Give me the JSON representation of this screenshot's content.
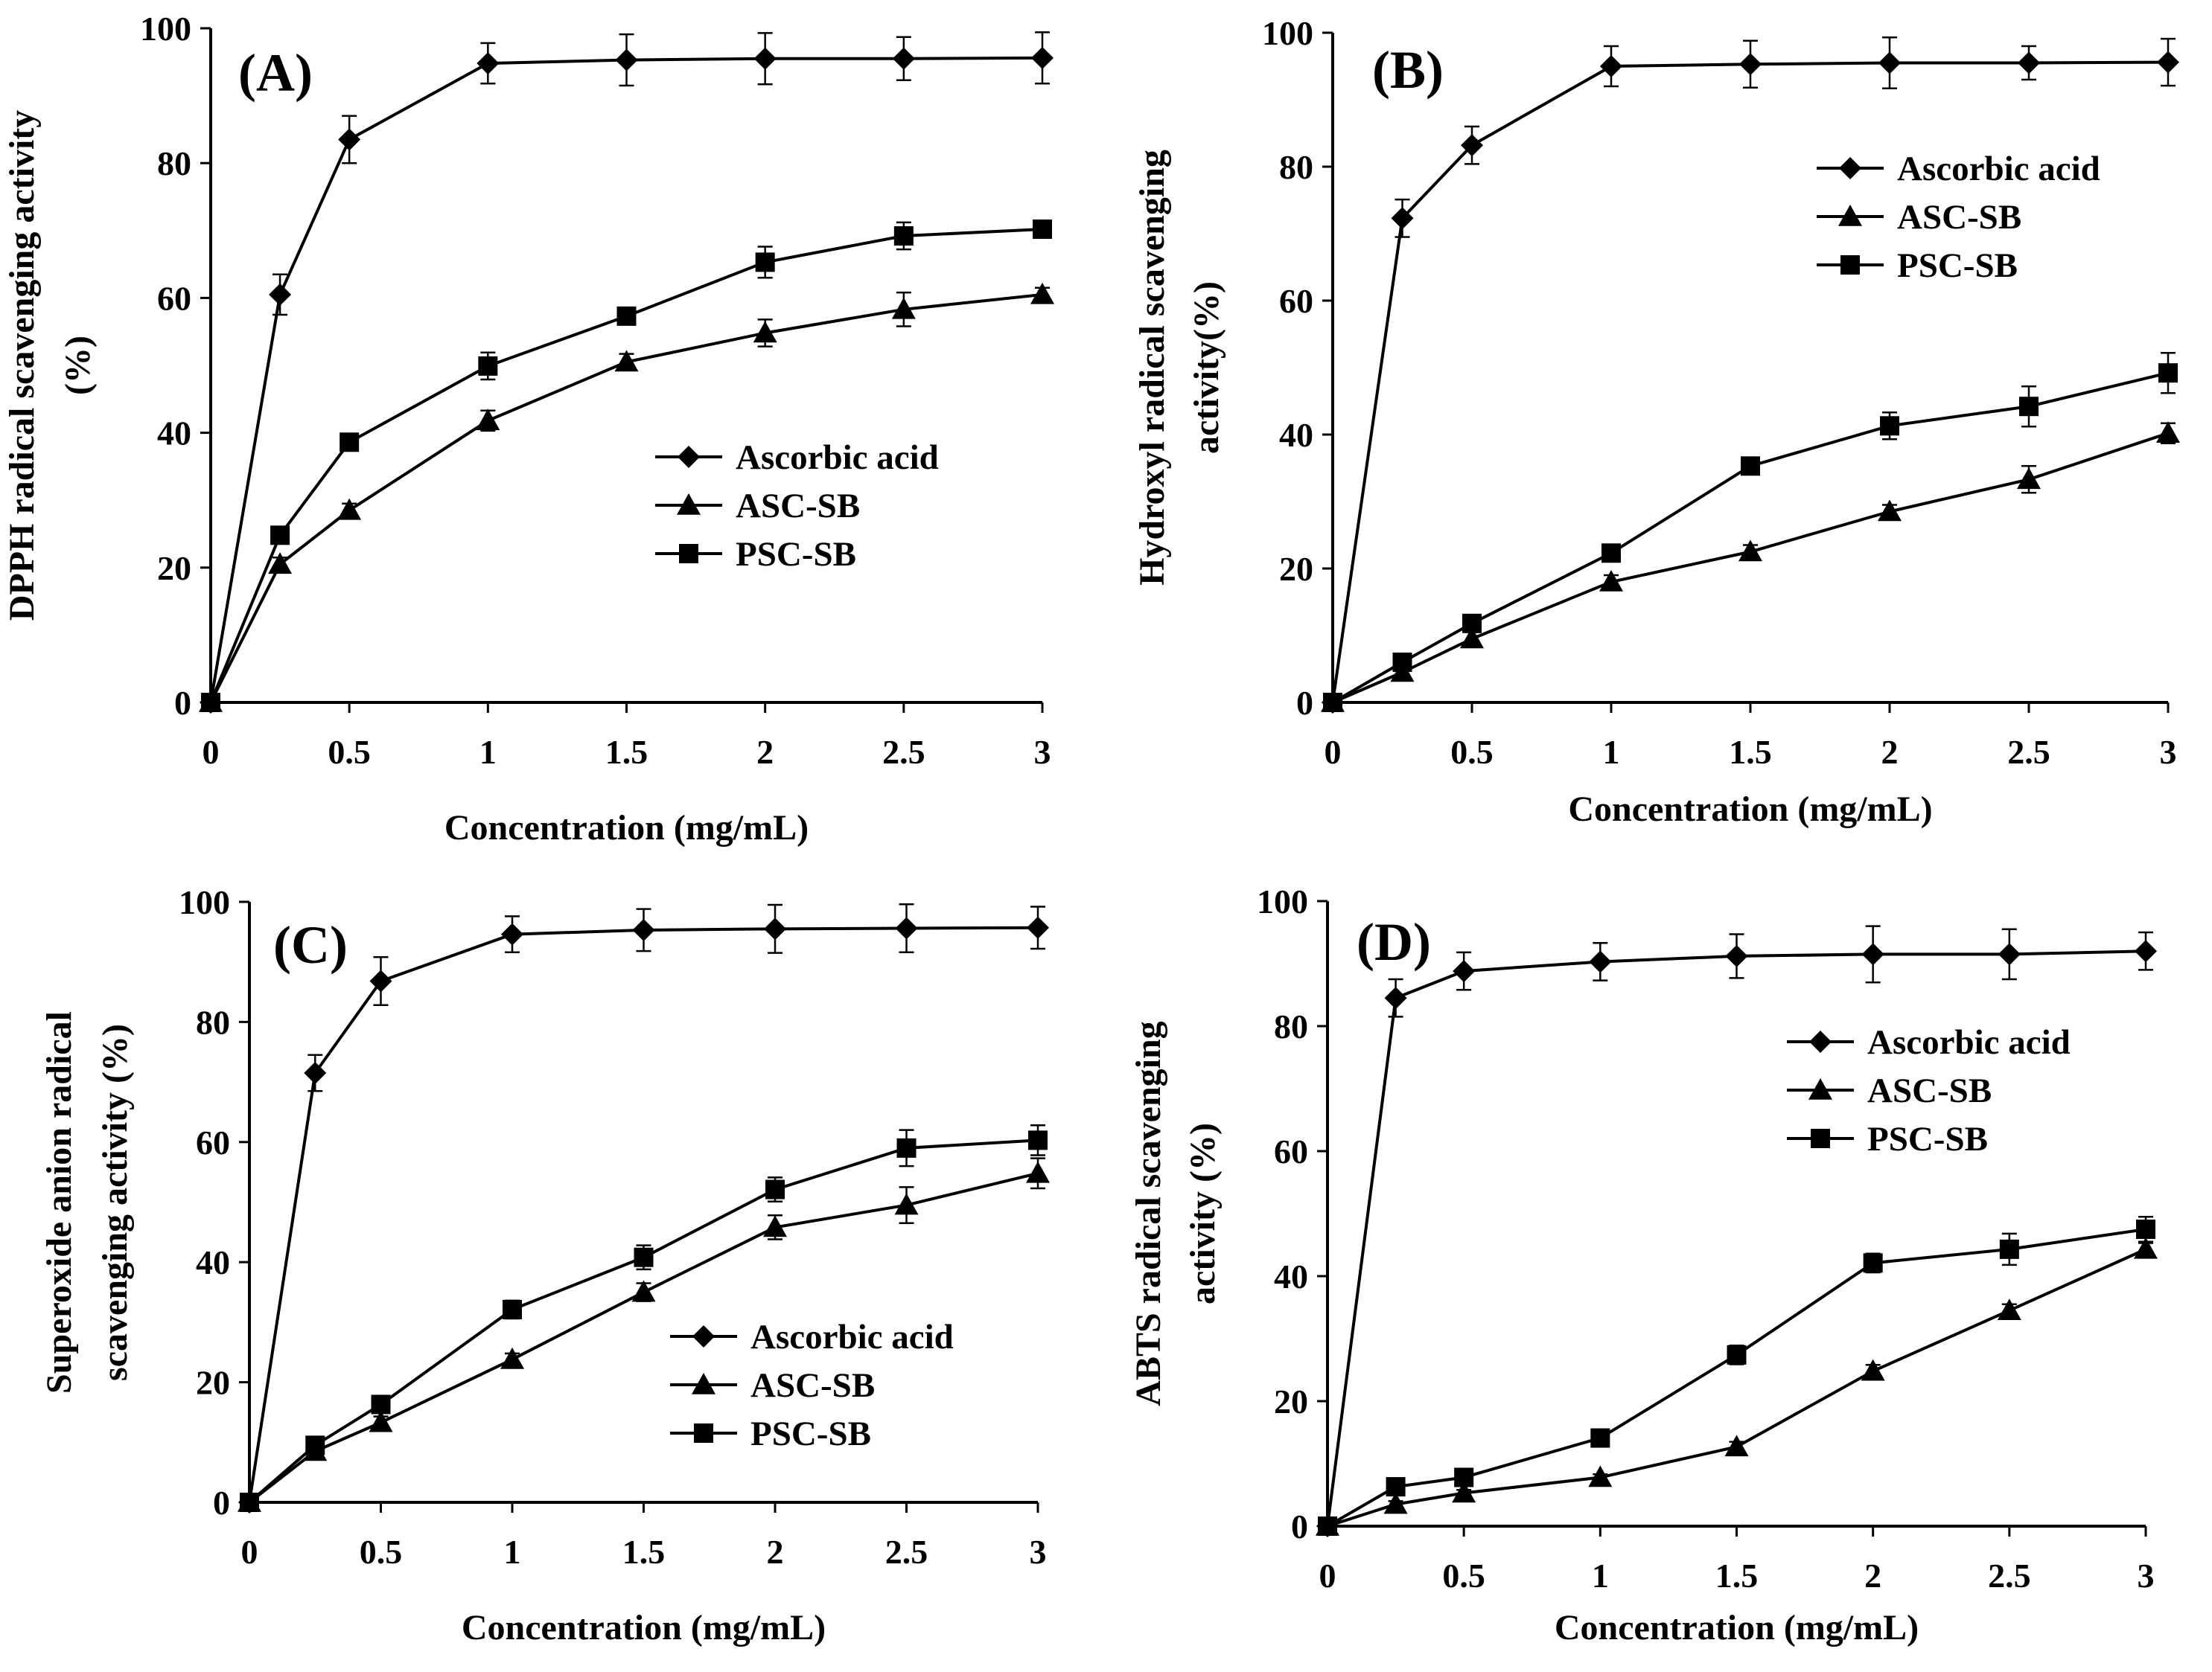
{
  "figure": {
    "x_ticks": [
      "0",
      "0.5",
      "1",
      "1.5",
      "2",
      "2.5",
      "3"
    ],
    "y_ticks": [
      "0",
      "20",
      "40",
      "60",
      "80",
      "100"
    ],
    "series_names": [
      "Ascorbic acid",
      "ASC-SB",
      "PSC-SB"
    ],
    "series_markers": [
      "diamond",
      "triangle",
      "square"
    ],
    "line_color": "#000000"
  },
  "chart_data": [
    {
      "type": "line",
      "panel_label": "(A)",
      "xlabel": "Concentration (mg/mL)",
      "ylabel": [
        "DPPH radical scavenging activity",
        "(%)"
      ],
      "x": [
        0,
        0.25,
        0.5,
        1,
        1.5,
        2,
        2.5,
        3
      ],
      "xlim": [
        0,
        3
      ],
      "ylim": [
        0,
        100
      ],
      "legend_position": "center-right",
      "series": [
        {
          "name": "Ascorbic acid",
          "marker": "diamond",
          "values": [
            0,
            60.5,
            83.5,
            94.8,
            95.3,
            95.5,
            95.5,
            95.6
          ],
          "errors": [
            0,
            3,
            3.5,
            3,
            3.8,
            3.8,
            3.2,
            3.8
          ]
        },
        {
          "name": "ASC-SB",
          "marker": "triangle",
          "values": [
            0,
            20.5,
            28.5,
            41.8,
            50.5,
            54.8,
            58.3,
            60.5
          ],
          "errors": [
            0,
            1,
            1,
            1.5,
            1.2,
            2,
            2.5,
            1
          ]
        },
        {
          "name": "PSC-SB",
          "marker": "square",
          "values": [
            0,
            24.8,
            38.6,
            49.9,
            57.3,
            65.3,
            69.2,
            70.2
          ],
          "errors": [
            0,
            1,
            1,
            2,
            1,
            2.3,
            2,
            1
          ]
        }
      ]
    },
    {
      "type": "line",
      "panel_label": "(B)",
      "xlabel": "Concentration (mg/mL)",
      "ylabel": [
        "Hydroxyl radical scavenging",
        "activity(%)"
      ],
      "x": [
        0,
        0.25,
        0.5,
        1,
        1.5,
        2,
        2.5,
        3
      ],
      "xlim": [
        0,
        3
      ],
      "ylim": [
        0,
        100
      ],
      "legend_position": "top-right",
      "series": [
        {
          "name": "Ascorbic acid",
          "marker": "diamond",
          "values": [
            0,
            72.3,
            83.2,
            95,
            95.3,
            95.5,
            95.5,
            95.6
          ],
          "errors": [
            0,
            2.8,
            2.8,
            3,
            3.5,
            3.8,
            2.5,
            3.5
          ]
        },
        {
          "name": "ASC-SB",
          "marker": "triangle",
          "values": [
            0,
            4.5,
            9.5,
            18,
            22.5,
            28.5,
            33.3,
            40.2
          ],
          "errors": [
            0,
            0.8,
            1,
            1,
            1,
            1,
            2,
            1.5
          ]
        },
        {
          "name": "PSC-SB",
          "marker": "square",
          "values": [
            0,
            6,
            11.8,
            22.3,
            35.3,
            41.3,
            44.2,
            49.2
          ],
          "errors": [
            0,
            1,
            1,
            1,
            1,
            2,
            3,
            3
          ]
        }
      ]
    },
    {
      "type": "line",
      "panel_label": "(C)",
      "xlabel": "Concentration (mg/mL)",
      "ylabel": [
        "Superoxide anion radical",
        "scavenging activity (%)"
      ],
      "x": [
        0,
        0.25,
        0.5,
        1,
        1.5,
        2,
        2.5,
        3
      ],
      "xlim": [
        0,
        3
      ],
      "ylim": [
        0,
        100
      ],
      "legend_position": "bottom-right",
      "series": [
        {
          "name": "Ascorbic acid",
          "marker": "diamond",
          "values": [
            0,
            71.5,
            86.8,
            94.6,
            95.3,
            95.5,
            95.6,
            95.7
          ],
          "errors": [
            0,
            3,
            4,
            3,
            3.5,
            4,
            4,
            3.5
          ]
        },
        {
          "name": "ASC-SB",
          "marker": "triangle",
          "values": [
            0,
            8.5,
            13.3,
            23.8,
            35,
            45.8,
            49.5,
            54.8
          ],
          "errors": [
            0,
            1,
            1,
            1,
            1.5,
            2,
            3,
            2.5
          ]
        },
        {
          "name": "PSC-SB",
          "marker": "square",
          "values": [
            0,
            9.5,
            16.3,
            32.1,
            40.8,
            52.1,
            59,
            60.3
          ],
          "errors": [
            0,
            1,
            1,
            1.5,
            2,
            2,
            3,
            2.5
          ]
        }
      ]
    },
    {
      "type": "line",
      "panel_label": "(D)",
      "xlabel": "Concentration (mg/mL)",
      "ylabel": [
        "ABTS radical scavenging",
        "activity (%)"
      ],
      "x": [
        0,
        0.25,
        0.5,
        1,
        1.5,
        2,
        2.5,
        3
      ],
      "xlim": [
        0,
        3
      ],
      "ylim": [
        0,
        100
      ],
      "legend_position": "top-right",
      "series": [
        {
          "name": "Ascorbic acid",
          "marker": "diamond",
          "values": [
            0,
            84.5,
            88.8,
            90.3,
            91.2,
            91.5,
            91.5,
            92
          ],
          "errors": [
            0,
            3,
            3,
            3,
            3.5,
            4.5,
            4,
            3
          ]
        },
        {
          "name": "ASC-SB",
          "marker": "triangle",
          "values": [
            0,
            3.5,
            5.3,
            7.8,
            12.7,
            24.8,
            34.5,
            44.3
          ],
          "errors": [
            0,
            0.5,
            0.5,
            0.5,
            0.8,
            1,
            1,
            1
          ]
        },
        {
          "name": "PSC-SB",
          "marker": "square",
          "values": [
            0,
            6.3,
            7.8,
            14.1,
            27.4,
            42.1,
            44.3,
            47.5
          ],
          "errors": [
            0,
            0.5,
            0.5,
            1,
            1.5,
            1.5,
            2.5,
            2
          ]
        }
      ]
    }
  ]
}
